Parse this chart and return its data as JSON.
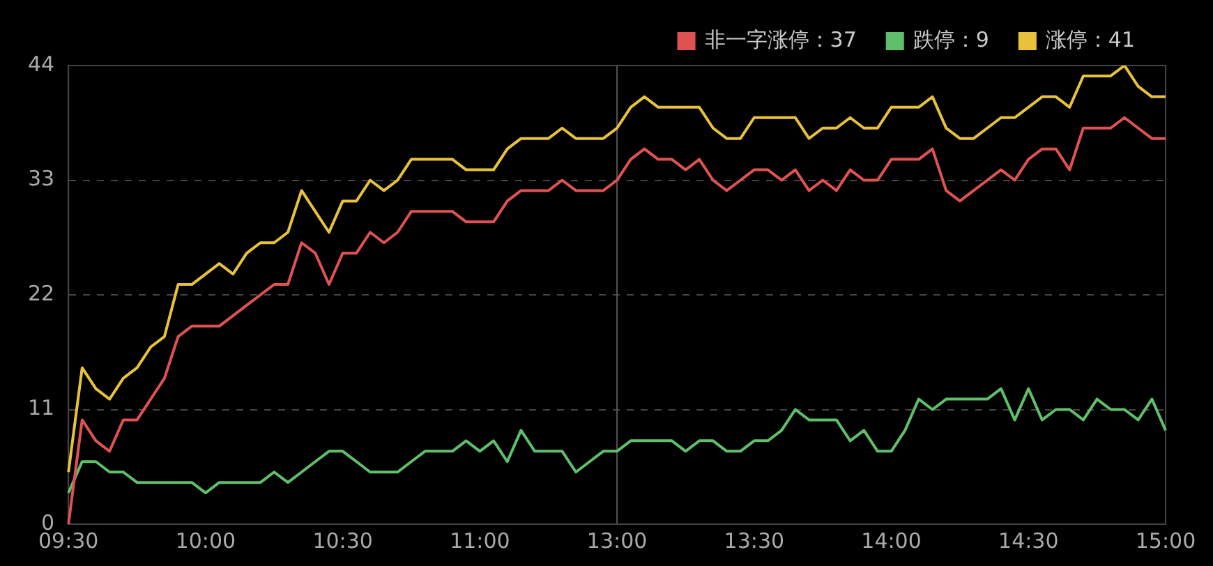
{
  "chart_data": {
    "type": "line",
    "categories": [
      "09:30",
      null,
      null,
      null,
      null,
      null,
      null,
      null,
      null,
      null,
      "10:00",
      null,
      null,
      null,
      null,
      null,
      null,
      null,
      null,
      null,
      "10:30",
      null,
      null,
      null,
      null,
      null,
      null,
      null,
      null,
      null,
      "11:00",
      null,
      null,
      null,
      null,
      null,
      null,
      null,
      null,
      null,
      "13:00",
      null,
      null,
      null,
      null,
      null,
      null,
      null,
      null,
      null,
      "13:30",
      null,
      null,
      null,
      null,
      null,
      null,
      null,
      null,
      null,
      "14:00",
      null,
      null,
      null,
      null,
      null,
      null,
      null,
      null,
      null,
      "14:30",
      null,
      null,
      null,
      null,
      null,
      null,
      null,
      null,
      null,
      "15:00"
    ],
    "series": [
      {
        "name": "非一字涨停：37",
        "color": "#e05252",
        "values": [
          0,
          10,
          8,
          7,
          10,
          10,
          12,
          14,
          18,
          19,
          19,
          19,
          20,
          21,
          22,
          23,
          23,
          27,
          26,
          23,
          26,
          26,
          28,
          27,
          28,
          30,
          30,
          30,
          30,
          29,
          29,
          29,
          31,
          32,
          32,
          32,
          33,
          32,
          32,
          32,
          33,
          35,
          36,
          35,
          35,
          34,
          35,
          33,
          32,
          33,
          34,
          34,
          33,
          34,
          32,
          33,
          32,
          34,
          33,
          33,
          35,
          35,
          35,
          36,
          32,
          31,
          32,
          33,
          34,
          33,
          35,
          36,
          36,
          34,
          38,
          38,
          38,
          39,
          38,
          37,
          37
        ]
      },
      {
        "name": "跌停：9",
        "color": "#5fbf6a",
        "values": [
          3,
          6,
          6,
          5,
          5,
          4,
          4,
          4,
          4,
          4,
          3,
          4,
          4,
          4,
          4,
          5,
          4,
          5,
          6,
          7,
          7,
          6,
          5,
          5,
          5,
          6,
          7,
          7,
          7,
          8,
          7,
          8,
          6,
          9,
          7,
          7,
          7,
          5,
          6,
          7,
          7,
          8,
          8,
          8,
          8,
          7,
          8,
          8,
          7,
          7,
          8,
          8,
          9,
          11,
          10,
          10,
          10,
          8,
          9,
          7,
          7,
          9,
          12,
          11,
          12,
          12,
          12,
          12,
          13,
          10,
          13,
          10,
          11,
          11,
          10,
          12,
          11,
          11,
          10,
          12,
          9
        ]
      },
      {
        "name": "涨停：41",
        "color": "#e8c23a",
        "values": [
          5,
          15,
          13,
          12,
          14,
          15,
          17,
          18,
          23,
          23,
          24,
          25,
          24,
          26,
          27,
          27,
          28,
          32,
          30,
          28,
          31,
          31,
          33,
          32,
          33,
          35,
          35,
          35,
          35,
          34,
          34,
          34,
          36,
          37,
          37,
          37,
          38,
          37,
          37,
          37,
          38,
          40,
          41,
          40,
          40,
          40,
          40,
          38,
          37,
          37,
          39,
          39,
          39,
          39,
          37,
          38,
          38,
          39,
          38,
          38,
          40,
          40,
          40,
          41,
          38,
          37,
          37,
          38,
          39,
          39,
          40,
          41,
          41,
          40,
          43,
          43,
          43,
          44,
          42,
          41,
          41
        ]
      }
    ],
    "ylim": [
      0,
      44
    ],
    "yticks": [
      0,
      11,
      22,
      33,
      44
    ],
    "grid": "y",
    "legend": "top right",
    "ref_lines": [
      {
        "axis": "x",
        "value": "13:00",
        "color": "#555555"
      }
    ]
  }
}
